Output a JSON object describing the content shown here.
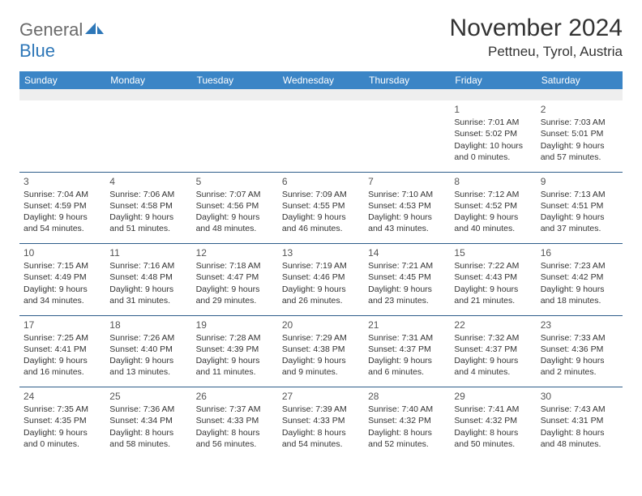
{
  "brand": {
    "word1": "General",
    "word2": "Blue"
  },
  "title": {
    "month": "November 2024",
    "location": "Pettneu, Tyrol, Austria"
  },
  "colors": {
    "header_bg": "#3b85c6",
    "header_text": "#ffffff",
    "week_sep": "#2e5d8a",
    "spacer_bg": "#eeeeee",
    "text": "#333333",
    "logo_gray": "#6b6b6b",
    "logo_blue": "#2e77b8"
  },
  "day_headers": [
    "Sunday",
    "Monday",
    "Tuesday",
    "Wednesday",
    "Thursday",
    "Friday",
    "Saturday"
  ],
  "weeks": [
    [
      {
        "blank": true
      },
      {
        "blank": true
      },
      {
        "blank": true
      },
      {
        "blank": true
      },
      {
        "blank": true
      },
      {
        "num": "1",
        "sunrise": "Sunrise: 7:01 AM",
        "sunset": "Sunset: 5:02 PM",
        "day1": "Daylight: 10 hours",
        "day2": "and 0 minutes."
      },
      {
        "num": "2",
        "sunrise": "Sunrise: 7:03 AM",
        "sunset": "Sunset: 5:01 PM",
        "day1": "Daylight: 9 hours",
        "day2": "and 57 minutes."
      }
    ],
    [
      {
        "num": "3",
        "sunrise": "Sunrise: 7:04 AM",
        "sunset": "Sunset: 4:59 PM",
        "day1": "Daylight: 9 hours",
        "day2": "and 54 minutes."
      },
      {
        "num": "4",
        "sunrise": "Sunrise: 7:06 AM",
        "sunset": "Sunset: 4:58 PM",
        "day1": "Daylight: 9 hours",
        "day2": "and 51 minutes."
      },
      {
        "num": "5",
        "sunrise": "Sunrise: 7:07 AM",
        "sunset": "Sunset: 4:56 PM",
        "day1": "Daylight: 9 hours",
        "day2": "and 48 minutes."
      },
      {
        "num": "6",
        "sunrise": "Sunrise: 7:09 AM",
        "sunset": "Sunset: 4:55 PM",
        "day1": "Daylight: 9 hours",
        "day2": "and 46 minutes."
      },
      {
        "num": "7",
        "sunrise": "Sunrise: 7:10 AM",
        "sunset": "Sunset: 4:53 PM",
        "day1": "Daylight: 9 hours",
        "day2": "and 43 minutes."
      },
      {
        "num": "8",
        "sunrise": "Sunrise: 7:12 AM",
        "sunset": "Sunset: 4:52 PM",
        "day1": "Daylight: 9 hours",
        "day2": "and 40 minutes."
      },
      {
        "num": "9",
        "sunrise": "Sunrise: 7:13 AM",
        "sunset": "Sunset: 4:51 PM",
        "day1": "Daylight: 9 hours",
        "day2": "and 37 minutes."
      }
    ],
    [
      {
        "num": "10",
        "sunrise": "Sunrise: 7:15 AM",
        "sunset": "Sunset: 4:49 PM",
        "day1": "Daylight: 9 hours",
        "day2": "and 34 minutes."
      },
      {
        "num": "11",
        "sunrise": "Sunrise: 7:16 AM",
        "sunset": "Sunset: 4:48 PM",
        "day1": "Daylight: 9 hours",
        "day2": "and 31 minutes."
      },
      {
        "num": "12",
        "sunrise": "Sunrise: 7:18 AM",
        "sunset": "Sunset: 4:47 PM",
        "day1": "Daylight: 9 hours",
        "day2": "and 29 minutes."
      },
      {
        "num": "13",
        "sunrise": "Sunrise: 7:19 AM",
        "sunset": "Sunset: 4:46 PM",
        "day1": "Daylight: 9 hours",
        "day2": "and 26 minutes."
      },
      {
        "num": "14",
        "sunrise": "Sunrise: 7:21 AM",
        "sunset": "Sunset: 4:45 PM",
        "day1": "Daylight: 9 hours",
        "day2": "and 23 minutes."
      },
      {
        "num": "15",
        "sunrise": "Sunrise: 7:22 AM",
        "sunset": "Sunset: 4:43 PM",
        "day1": "Daylight: 9 hours",
        "day2": "and 21 minutes."
      },
      {
        "num": "16",
        "sunrise": "Sunrise: 7:23 AM",
        "sunset": "Sunset: 4:42 PM",
        "day1": "Daylight: 9 hours",
        "day2": "and 18 minutes."
      }
    ],
    [
      {
        "num": "17",
        "sunrise": "Sunrise: 7:25 AM",
        "sunset": "Sunset: 4:41 PM",
        "day1": "Daylight: 9 hours",
        "day2": "and 16 minutes."
      },
      {
        "num": "18",
        "sunrise": "Sunrise: 7:26 AM",
        "sunset": "Sunset: 4:40 PM",
        "day1": "Daylight: 9 hours",
        "day2": "and 13 minutes."
      },
      {
        "num": "19",
        "sunrise": "Sunrise: 7:28 AM",
        "sunset": "Sunset: 4:39 PM",
        "day1": "Daylight: 9 hours",
        "day2": "and 11 minutes."
      },
      {
        "num": "20",
        "sunrise": "Sunrise: 7:29 AM",
        "sunset": "Sunset: 4:38 PM",
        "day1": "Daylight: 9 hours",
        "day2": "and 9 minutes."
      },
      {
        "num": "21",
        "sunrise": "Sunrise: 7:31 AM",
        "sunset": "Sunset: 4:37 PM",
        "day1": "Daylight: 9 hours",
        "day2": "and 6 minutes."
      },
      {
        "num": "22",
        "sunrise": "Sunrise: 7:32 AM",
        "sunset": "Sunset: 4:37 PM",
        "day1": "Daylight: 9 hours",
        "day2": "and 4 minutes."
      },
      {
        "num": "23",
        "sunrise": "Sunrise: 7:33 AM",
        "sunset": "Sunset: 4:36 PM",
        "day1": "Daylight: 9 hours",
        "day2": "and 2 minutes."
      }
    ],
    [
      {
        "num": "24",
        "sunrise": "Sunrise: 7:35 AM",
        "sunset": "Sunset: 4:35 PM",
        "day1": "Daylight: 9 hours",
        "day2": "and 0 minutes."
      },
      {
        "num": "25",
        "sunrise": "Sunrise: 7:36 AM",
        "sunset": "Sunset: 4:34 PM",
        "day1": "Daylight: 8 hours",
        "day2": "and 58 minutes."
      },
      {
        "num": "26",
        "sunrise": "Sunrise: 7:37 AM",
        "sunset": "Sunset: 4:33 PM",
        "day1": "Daylight: 8 hours",
        "day2": "and 56 minutes."
      },
      {
        "num": "27",
        "sunrise": "Sunrise: 7:39 AM",
        "sunset": "Sunset: 4:33 PM",
        "day1": "Daylight: 8 hours",
        "day2": "and 54 minutes."
      },
      {
        "num": "28",
        "sunrise": "Sunrise: 7:40 AM",
        "sunset": "Sunset: 4:32 PM",
        "day1": "Daylight: 8 hours",
        "day2": "and 52 minutes."
      },
      {
        "num": "29",
        "sunrise": "Sunrise: 7:41 AM",
        "sunset": "Sunset: 4:32 PM",
        "day1": "Daylight: 8 hours",
        "day2": "and 50 minutes."
      },
      {
        "num": "30",
        "sunrise": "Sunrise: 7:43 AM",
        "sunset": "Sunset: 4:31 PM",
        "day1": "Daylight: 8 hours",
        "day2": "and 48 minutes."
      }
    ]
  ]
}
